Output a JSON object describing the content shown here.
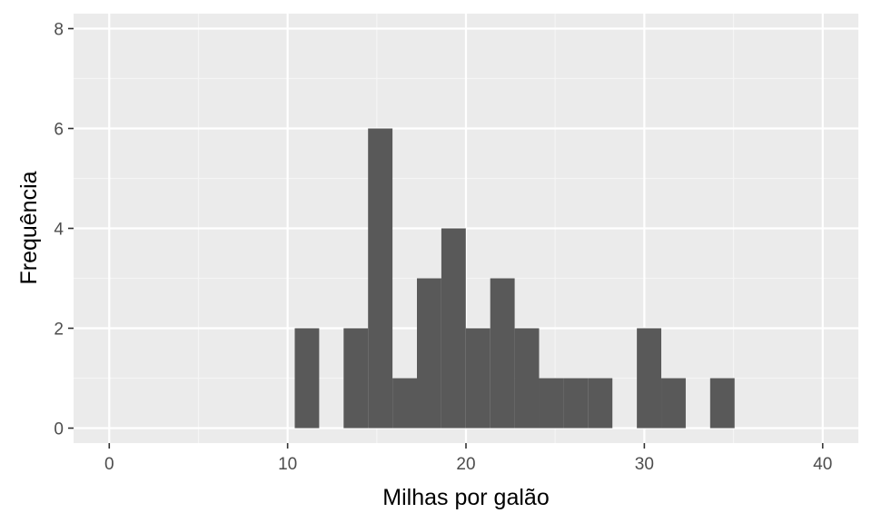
{
  "chart_data": {
    "type": "bar",
    "subtype": "histogram",
    "xlabel": "Milhas por galão",
    "ylabel": "Frequência",
    "xlim": [
      -2,
      42
    ],
    "ylim": [
      -0.3,
      8.3
    ],
    "xticks": [
      0,
      10,
      20,
      30,
      40
    ],
    "xtick_labels": [
      "0",
      "10",
      "20",
      "30",
      "40"
    ],
    "yticks": [
      0,
      2,
      4,
      6,
      8
    ],
    "ytick_labels": [
      "0",
      "2",
      "4",
      "6",
      "8"
    ],
    "bins": [
      {
        "x0": 10.4,
        "x1": 11.77,
        "count": 2
      },
      {
        "x0": 11.77,
        "x1": 13.14,
        "count": 0
      },
      {
        "x0": 13.14,
        "x1": 14.51,
        "count": 2
      },
      {
        "x0": 14.51,
        "x1": 15.88,
        "count": 6
      },
      {
        "x0": 15.88,
        "x1": 17.25,
        "count": 1
      },
      {
        "x0": 17.25,
        "x1": 18.62,
        "count": 3
      },
      {
        "x0": 18.62,
        "x1": 19.99,
        "count": 4
      },
      {
        "x0": 19.99,
        "x1": 21.36,
        "count": 2
      },
      {
        "x0": 21.36,
        "x1": 22.73,
        "count": 3
      },
      {
        "x0": 22.73,
        "x1": 24.1,
        "count": 2
      },
      {
        "x0": 24.1,
        "x1": 25.47,
        "count": 1
      },
      {
        "x0": 25.47,
        "x1": 26.84,
        "count": 1
      },
      {
        "x0": 26.84,
        "x1": 28.21,
        "count": 1
      },
      {
        "x0": 28.21,
        "x1": 29.58,
        "count": 0
      },
      {
        "x0": 29.58,
        "x1": 30.95,
        "count": 2
      },
      {
        "x0": 30.95,
        "x1": 32.32,
        "count": 1
      },
      {
        "x0": 32.32,
        "x1": 33.69,
        "count": 0
      },
      {
        "x0": 33.69,
        "x1": 35.06,
        "count": 1
      }
    ],
    "grid": true,
    "colors": {
      "bar_fill": "#595959",
      "panel_background": "#ebebeb",
      "grid_major": "#ffffff",
      "grid_minor": "#f5f5f5",
      "tick_text": "#4d4d4d",
      "tick_mark": "#333333"
    }
  }
}
